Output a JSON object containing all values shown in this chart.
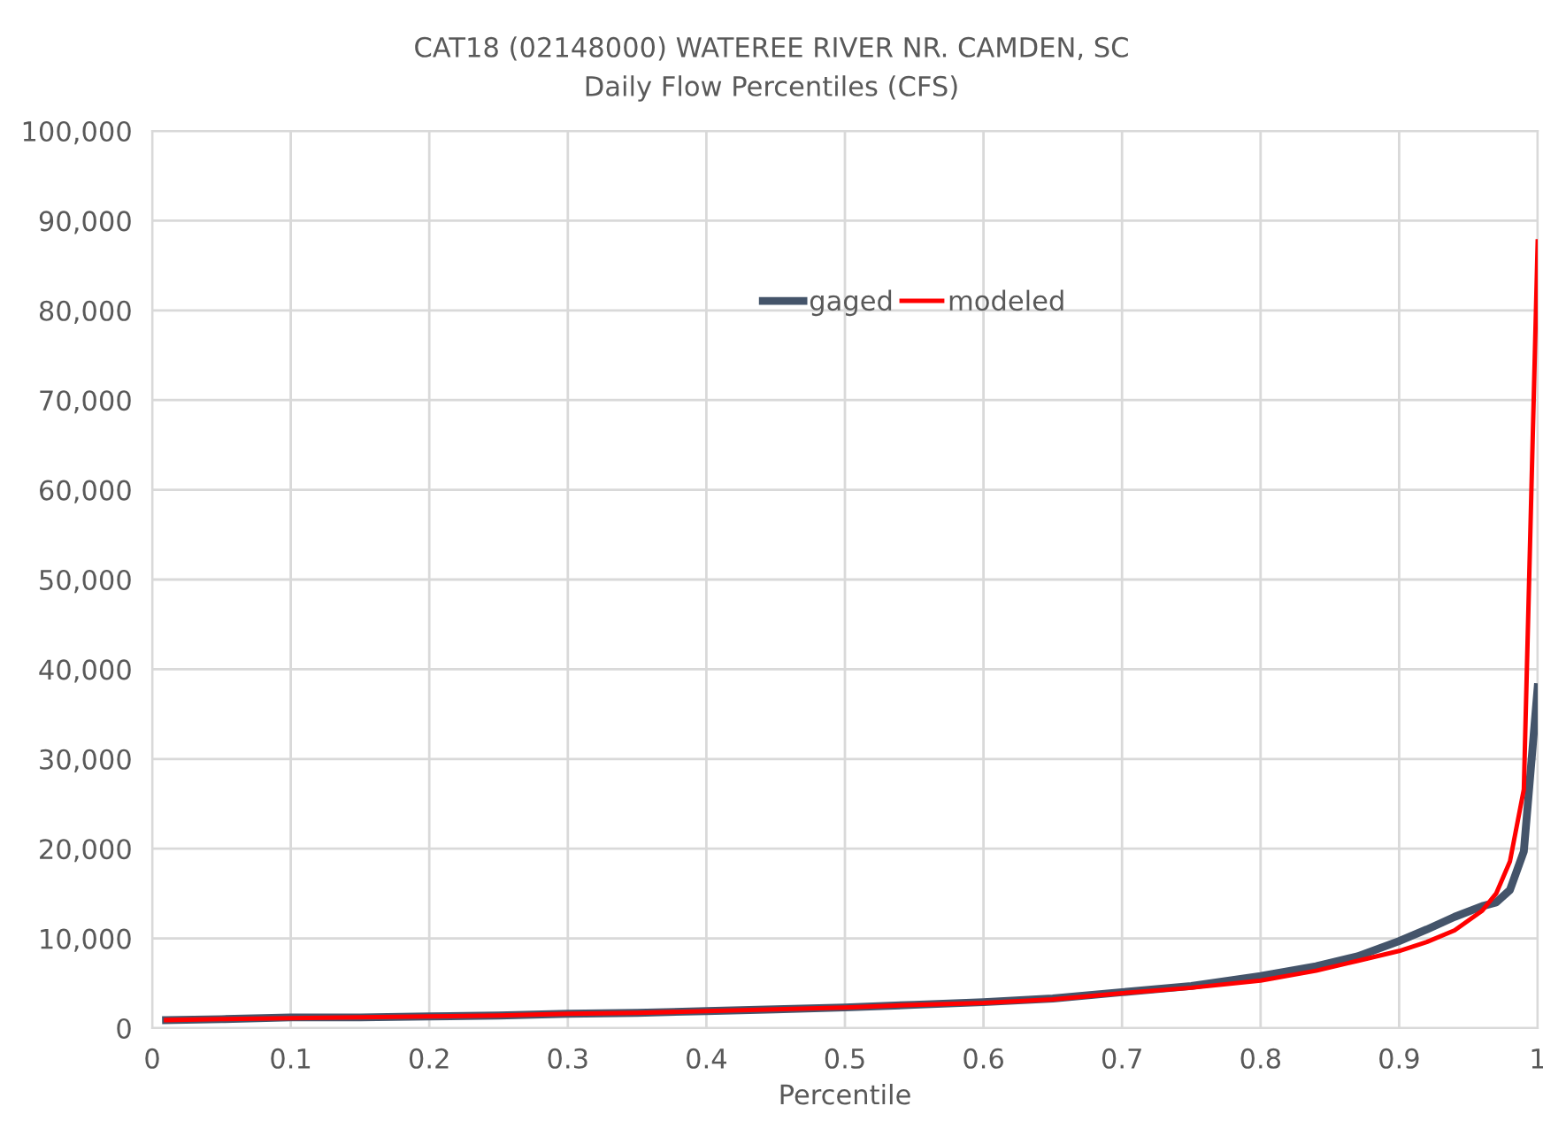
{
  "chart_data": {
    "type": "line",
    "title": "CAT18 (02148000) WATEREE RIVER NR. CAMDEN, SC",
    "subtitle": "Daily Flow Percentiles (CFS)",
    "xlabel": "Percentile",
    "x": [
      0.01,
      0.05,
      0.1,
      0.15,
      0.2,
      0.25,
      0.3,
      0.35,
      0.4,
      0.45,
      0.5,
      0.55,
      0.6,
      0.65,
      0.7,
      0.75,
      0.8,
      0.84,
      0.87,
      0.9,
      0.92,
      0.94,
      0.96,
      0.97,
      0.98,
      0.99,
      1.0
    ],
    "series": [
      {
        "name": "gaged",
        "color": "#44546a",
        "values": [
          900,
          1000,
          1200,
          1200,
          1300,
          1400,
          1600,
          1700,
          1900,
          2100,
          2300,
          2600,
          2900,
          3300,
          4000,
          4700,
          5800,
          6900,
          8000,
          9700,
          11000,
          12400,
          13600,
          14000,
          15400,
          19700,
          38000
        ]
      },
      {
        "name": "modeled",
        "color": "#ff0000",
        "values": [
          900,
          1000,
          1100,
          1200,
          1300,
          1400,
          1600,
          1700,
          1900,
          2100,
          2300,
          2600,
          2800,
          3200,
          3900,
          4500,
          5300,
          6400,
          7500,
          8600,
          9600,
          10900,
          13100,
          15000,
          18600,
          26600,
          87700
        ]
      }
    ],
    "xlim": [
      0,
      1
    ],
    "xticks": [
      0,
      0.1,
      0.2,
      0.3,
      0.4,
      0.5,
      0.6,
      0.7,
      0.8,
      0.9,
      1
    ],
    "ylim": [
      0,
      100000
    ],
    "yticks": [
      0,
      {
        "value": 10000,
        "label": "10,000"
      },
      {
        "value": 20000,
        "label": "20,000"
      },
      {
        "value": 30000,
        "label": "30,000"
      },
      {
        "value": 40000,
        "label": "40,000"
      },
      {
        "value": 50000,
        "label": "50,000"
      },
      {
        "value": 60000,
        "label": "60,000"
      },
      {
        "value": 70000,
        "label": "70,000"
      },
      {
        "value": 80000,
        "label": "80,000"
      },
      {
        "value": 90000,
        "label": "90,000"
      },
      {
        "value": 100000,
        "label": "100,000"
      }
    ],
    "grid": true,
    "legend": "top",
    "marker": "none",
    "line_style": "solid"
  }
}
